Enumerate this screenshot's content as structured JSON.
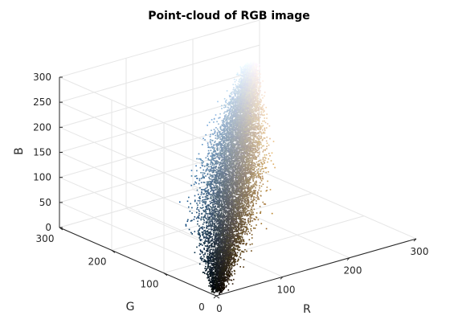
{
  "chart_data": {
    "type": "scatter",
    "title": "Point-cloud of RGB image",
    "xlabel": "R",
    "ylabel": "G",
    "zlabel": "B",
    "xlim": [
      0,
      300
    ],
    "ylim": [
      0,
      300
    ],
    "zlim": [
      0,
      300
    ],
    "x_ticks": [
      "0",
      "100",
      "200",
      "300"
    ],
    "y_ticks": [
      "0",
      "100",
      "200",
      "300"
    ],
    "z_ticks": [
      "0",
      "50",
      "100",
      "150",
      "200",
      "250",
      "300"
    ],
    "grid": true,
    "view": "3d",
    "color_mapping": "each point colored by its own RGB value",
    "points_summary": {
      "approx_point_count": 12000,
      "main_axis_start_rgb": [
        5,
        5,
        5
      ],
      "main_axis_end_rgb": [
        250,
        250,
        255
      ],
      "note": "dense elongated cloud along the gray diagonal, spreading toward blue/cyan tints at low R and warm tan tints at high R"
    }
  }
}
